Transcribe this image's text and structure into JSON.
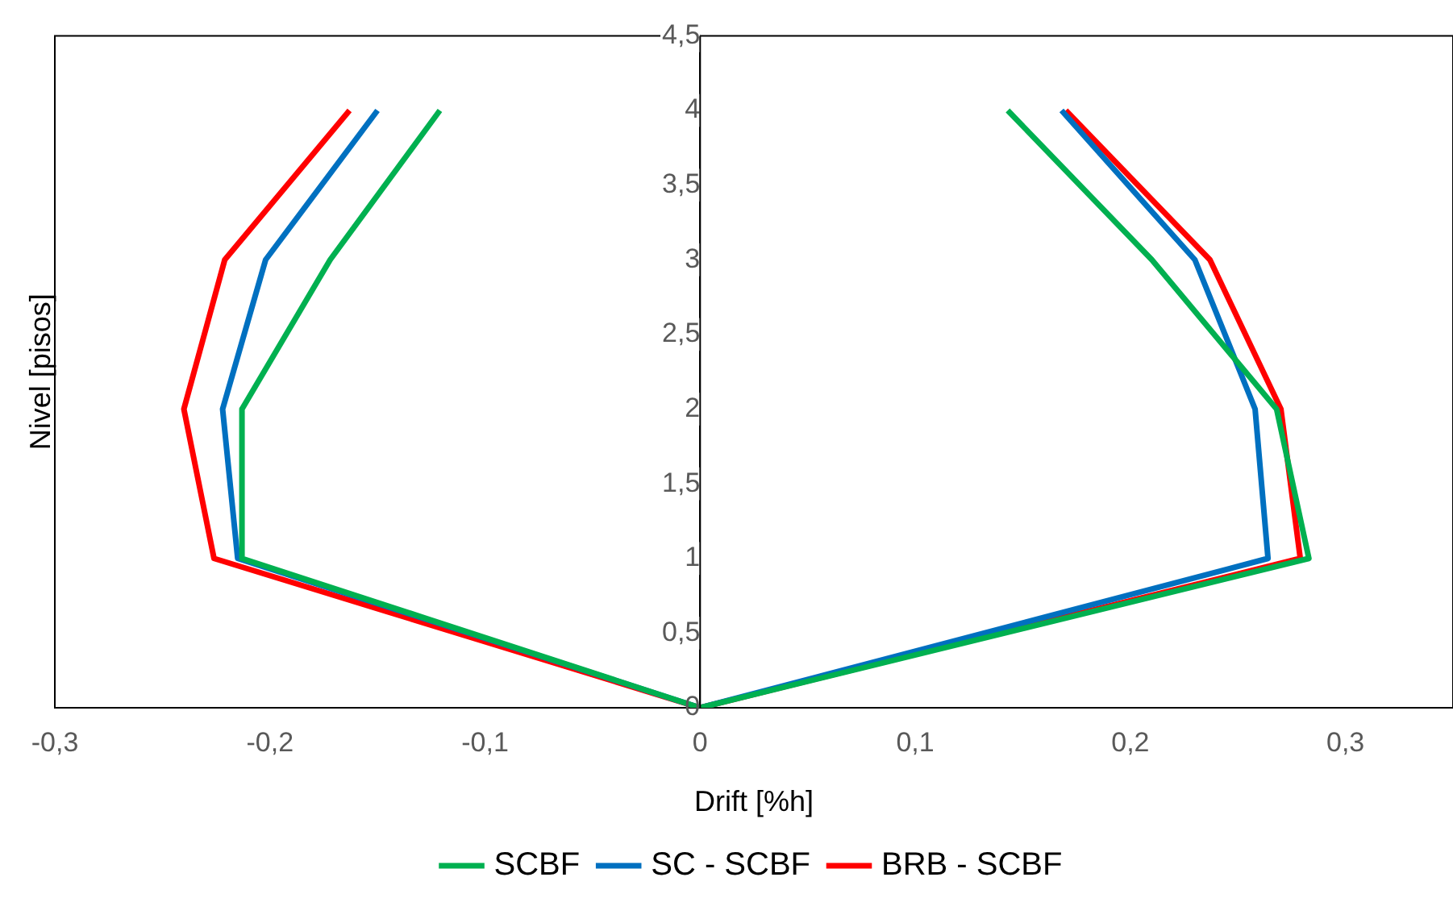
{
  "chart_data": {
    "type": "line",
    "xlabel": "Drift [%h]",
    "ylabel": "Nivel [pisos]",
    "xlim": [
      -0.3,
      0.35
    ],
    "ylim": [
      0,
      4.5
    ],
    "xticks": [
      {
        "value": -0.3,
        "label": "-0,3"
      },
      {
        "value": -0.2,
        "label": "-0,2"
      },
      {
        "value": -0.1,
        "label": "-0,1"
      },
      0,
      {
        "value": 0.1,
        "label": "0,1"
      },
      {
        "value": 0.2,
        "label": "0,2"
      },
      {
        "value": 0.3,
        "label": "0,3"
      }
    ],
    "yticks": [
      0,
      {
        "value": 0.5,
        "label": "0,5"
      },
      1,
      {
        "value": 1.5,
        "label": "1,5"
      },
      2,
      {
        "value": 2.5,
        "label": "2,5"
      },
      3,
      {
        "value": 3.5,
        "label": "3,5"
      },
      4,
      {
        "value": 4.5,
        "label": "4,5"
      }
    ],
    "grid": false,
    "legend": "bottom",
    "marker": "none",
    "line_style": "solid",
    "series": [
      {
        "name": "SCBF",
        "color": "#00b050",
        "x": [
          -0.121,
          -0.172,
          -0.213,
          -0.213,
          0,
          0.283,
          0.268,
          0.21,
          0.143
        ],
        "values": [
          4,
          3,
          2,
          1,
          0,
          1,
          2,
          3,
          4
        ]
      },
      {
        "name": "SC - SCBF",
        "color": "#0070c0",
        "x": [
          -0.15,
          -0.202,
          -0.222,
          -0.215,
          0,
          0.264,
          0.258,
          0.23,
          0.168
        ],
        "values": [
          4,
          3,
          2,
          1,
          0,
          1,
          2,
          3,
          4
        ]
      },
      {
        "name": "BRB - SCBF",
        "color": "#ff0000",
        "x": [
          -0.163,
          -0.221,
          -0.24,
          -0.226,
          0,
          0.279,
          0.27,
          0.237,
          0.17
        ],
        "values": [
          4,
          3,
          2,
          1,
          0,
          1,
          2,
          3,
          4
        ]
      }
    ]
  }
}
